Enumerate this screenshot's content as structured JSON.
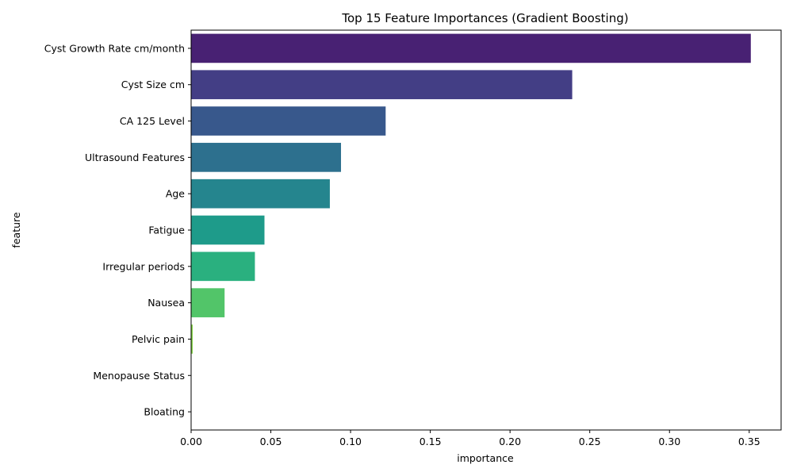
{
  "chart_data": {
    "type": "bar",
    "orientation": "horizontal",
    "title": "Top 15 Feature Importances (Gradient Boosting)",
    "xlabel": "importance",
    "ylabel": "feature",
    "xlim": [
      0,
      0.37
    ],
    "xticks": [
      0.0,
      0.05,
      0.1,
      0.15,
      0.2,
      0.25,
      0.3,
      0.35
    ],
    "xtick_labels": [
      "0.00",
      "0.05",
      "0.10",
      "0.15",
      "0.20",
      "0.25",
      "0.30",
      "0.35"
    ],
    "grid": false,
    "categories": [
      "Cyst Growth Rate cm/month",
      "Cyst Size cm",
      "CA 125 Level",
      "Ultrasound Features",
      "Age",
      "Fatigue",
      "Irregular periods",
      "Nausea",
      "Pelvic pain",
      "Menopause Status",
      "Bloating"
    ],
    "values": [
      0.351,
      0.239,
      0.122,
      0.094,
      0.087,
      0.046,
      0.04,
      0.021,
      0.001,
      0.0,
      0.0
    ],
    "colors": [
      "#482173",
      "#433e85",
      "#38588c",
      "#2d708e",
      "#25858e",
      "#1e9b8a",
      "#2ab07f",
      "#52c569",
      "#86d549",
      "#c2df23",
      "#fde725"
    ]
  }
}
